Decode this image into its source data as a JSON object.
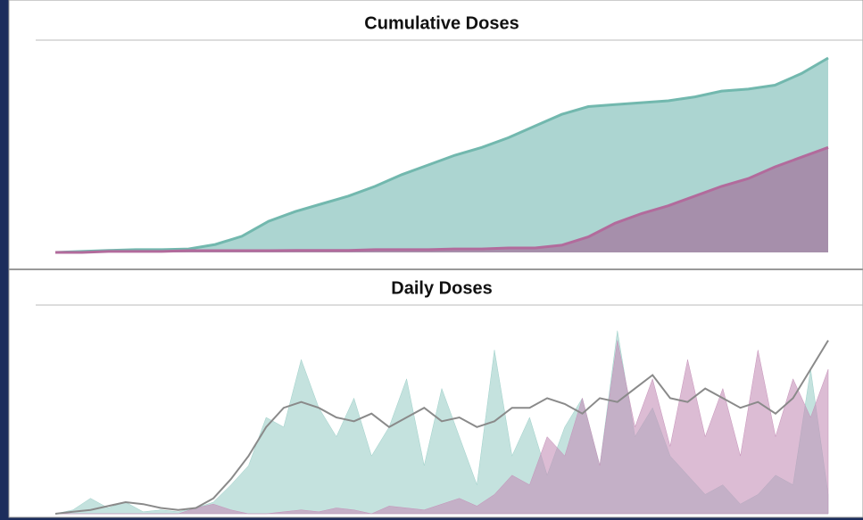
{
  "chart_data": [
    {
      "type": "area",
      "title": "Cumulative Doses",
      "ylim": [
        0,
        100
      ],
      "series": [
        {
          "color": "#72b8ae",
          "fill": "#acd5d1",
          "values": [
            0,
            0.5,
            1,
            1.4,
            1.4,
            1.8,
            4.1,
            8.3,
            16,
            21,
            25,
            29,
            34,
            40,
            45,
            50,
            54,
            59,
            65,
            71,
            75,
            76,
            77,
            78,
            80,
            83,
            84,
            86,
            92,
            100
          ]
        },
        {
          "color": "#b26b9c",
          "fill": "#a68fab",
          "values": [
            0,
            0,
            0.5,
            0.5,
            0.5,
            0.9,
            0.9,
            0.9,
            0.9,
            1,
            1,
            1,
            1.4,
            1.4,
            1.4,
            1.8,
            1.8,
            2.3,
            2.3,
            3.7,
            8,
            15,
            20,
            24,
            29,
            34,
            38,
            44,
            49,
            54
          ]
        }
      ]
    },
    {
      "type": "area",
      "title": "Daily Doses",
      "ylim": [
        0,
        100
      ],
      "series": [
        {
          "color": "#9ccfc8",
          "fill": "#9ccfc8",
          "values": [
            0,
            2,
            8,
            3,
            6,
            1,
            2,
            1,
            3,
            6,
            15,
            25,
            50,
            45,
            80,
            55,
            40,
            60,
            30,
            45,
            70,
            25,
            65,
            40,
            15,
            85,
            30,
            50,
            20,
            45,
            60,
            25,
            95,
            40,
            55,
            30,
            20,
            10,
            15,
            5,
            10,
            20,
            15,
            75,
            10
          ]
        },
        {
          "color": "#c590b8",
          "fill": "#c590b8",
          "values": [
            0,
            0,
            0,
            0,
            0,
            0,
            0,
            0,
            3,
            5,
            2,
            0,
            0,
            1,
            2,
            1,
            3,
            2,
            0,
            4,
            3,
            2,
            5,
            8,
            4,
            10,
            20,
            15,
            40,
            30,
            60,
            25,
            90,
            45,
            70,
            35,
            80,
            40,
            65,
            30,
            85,
            40,
            70,
            50,
            75
          ]
        },
        {
          "type": "line",
          "color": "#8a8a8a",
          "values": [
            0,
            1,
            2,
            4,
            6,
            5,
            3,
            2,
            3,
            8,
            18,
            30,
            45,
            55,
            58,
            55,
            50,
            48,
            52,
            45,
            50,
            55,
            48,
            50,
            45,
            48,
            55,
            55,
            60,
            57,
            52,
            60,
            58,
            65,
            72,
            60,
            58,
            65,
            60,
            55,
            58,
            52,
            60,
            75,
            90
          ]
        }
      ]
    }
  ]
}
